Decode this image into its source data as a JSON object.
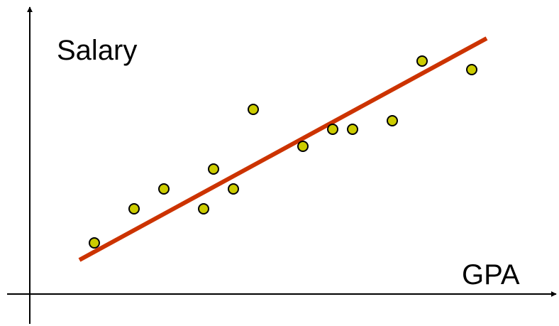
{
  "chart_data": {
    "type": "scatter",
    "title": "",
    "xlabel": "GPA",
    "ylabel": "Salary",
    "xlim": [
      0,
      100
    ],
    "ylim": [
      0,
      100
    ],
    "grid": false,
    "legend": "none",
    "series": [
      {
        "points": [
          {
            "x": 13,
            "y": 18
          },
          {
            "x": 21,
            "y": 30
          },
          {
            "x": 27,
            "y": 37
          },
          {
            "x": 35,
            "y": 30
          },
          {
            "x": 37,
            "y": 44
          },
          {
            "x": 41,
            "y": 37
          },
          {
            "x": 45,
            "y": 65
          },
          {
            "x": 55,
            "y": 52
          },
          {
            "x": 61,
            "y": 58
          },
          {
            "x": 65,
            "y": 58
          },
          {
            "x": 73,
            "y": 61
          },
          {
            "x": 79,
            "y": 82
          },
          {
            "x": 89,
            "y": 79
          }
        ],
        "trendline": {
          "x": [
            10,
            92
          ],
          "y": [
            12,
            90
          ]
        }
      }
    ],
    "colors": {
      "point_fill": "#cccc00",
      "point_stroke": "#000000",
      "trendline": "#cc3300",
      "axis": "#000000"
    }
  }
}
